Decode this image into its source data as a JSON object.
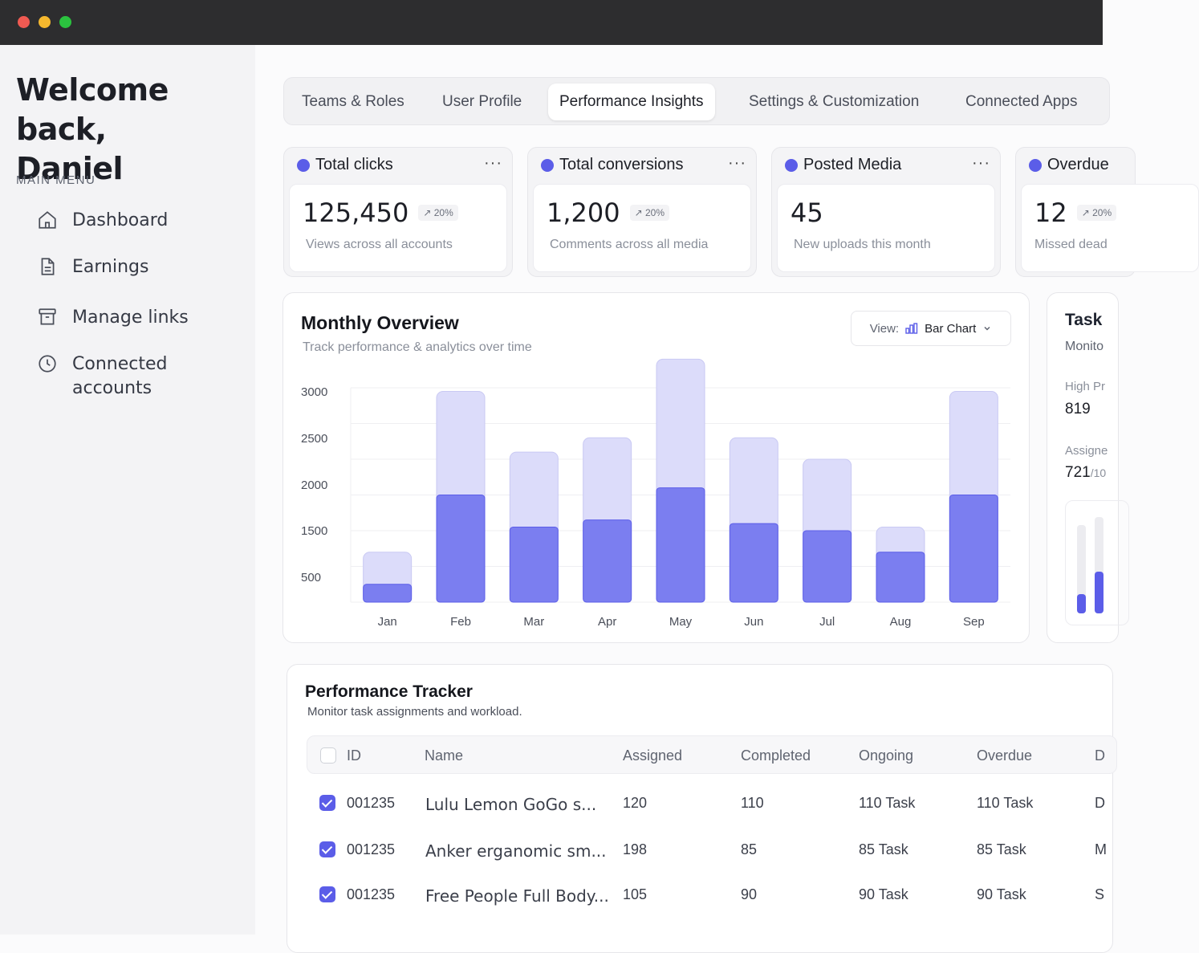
{
  "sidebar": {
    "welcome_line1": "Welcome back,",
    "welcome_line2": "Daniel",
    "menu_title": "MAIN MENU",
    "items": [
      {
        "label": "Dashboard",
        "icon": "home-icon"
      },
      {
        "label": "Earnings",
        "icon": "document-icon"
      },
      {
        "label": "Manage links",
        "icon": "archive-icon"
      },
      {
        "label": "Connected accounts",
        "icon": "clock-icon"
      }
    ]
  },
  "tabs": [
    {
      "label": "Teams & Roles"
    },
    {
      "label": "User Profile"
    },
    {
      "label": "Performance Insights",
      "active": true
    },
    {
      "label": "Settings & Customization"
    },
    {
      "label": "Connected Apps"
    }
  ],
  "stats": [
    {
      "title": "Total clicks",
      "value": "125,450",
      "badge": "↗ 20%",
      "sub": "Views across all accounts"
    },
    {
      "title": "Total conversions",
      "value": "1,200",
      "badge": "↗ 20%",
      "sub": "Comments across all media"
    },
    {
      "title": "Posted Media",
      "value": "45",
      "badge": "",
      "sub": "New uploads this month"
    },
    {
      "title": "Overdue",
      "value": "12",
      "badge": "↗ 20%",
      "sub": "Missed dead"
    }
  ],
  "overview": {
    "title": "Monthly Overview",
    "subtitle": "Track performance & analytics over time",
    "view_label": "View:",
    "view_value": "Bar Chart"
  },
  "chart_data": {
    "type": "bar",
    "categories": [
      "Jan",
      "Feb",
      "Mar",
      "Apr",
      "May",
      "Jun",
      "Jul",
      "Aug",
      "Sep"
    ],
    "series": [
      {
        "values": [
          250,
          1500,
          1050,
          1150,
          1600,
          1100,
          1000,
          700,
          1500
        ]
      },
      {
        "values": [
          450,
          1450,
          1050,
          1150,
          1800,
          1200,
          1000,
          350,
          1450
        ]
      }
    ],
    "y_ticks": [
      3000,
      2500,
      2000,
      1500,
      500
    ],
    "ylim": [
      0,
      3000
    ],
    "colors": {
      "lower": "#7b7ef0",
      "upper": "#dcdcfa"
    }
  },
  "task": {
    "title": "Task",
    "subtitle": "Monito",
    "label1": "High Pr",
    "value1": "819",
    "label2": "Assigne",
    "value2": "721",
    "value2_suffix": "/10"
  },
  "tracker": {
    "title": "Performance Tracker",
    "subtitle": "Monitor task assignments and workload.",
    "columns": [
      "ID",
      "Name",
      "Assigned",
      "Completed",
      "Ongoing",
      "Overdue",
      "D"
    ],
    "rows": [
      {
        "id": "001235",
        "name": "Lulu Lemon GoGo s...",
        "assigned": "120",
        "completed": "110",
        "ongoing": "110 Task",
        "overdue": "110 Task",
        "extra": "D"
      },
      {
        "id": "001235",
        "name": "Anker erganomic sm...",
        "assigned": "198",
        "completed": "85",
        "ongoing": "85 Task",
        "overdue": "85 Task",
        "extra": "M"
      },
      {
        "id": "001235",
        "name": "Free People Full Body...",
        "assigned": "105",
        "completed": "90",
        "ongoing": "90 Task",
        "overdue": "90 Task",
        "extra": "S"
      }
    ]
  }
}
